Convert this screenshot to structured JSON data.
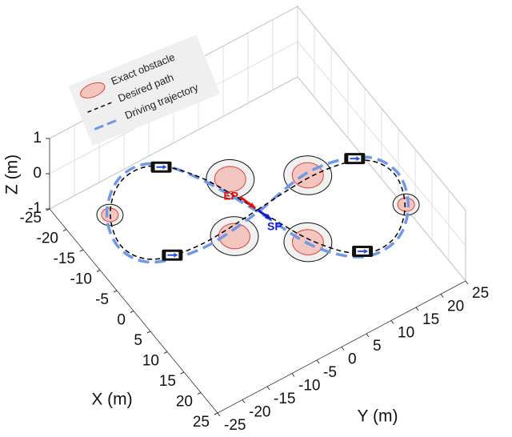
{
  "chart_data": {
    "type": "line3d",
    "xlabel": "X (m)",
    "ylabel": "Y (m)",
    "zlabel": "Z (m)",
    "xlim": [
      -25,
      25
    ],
    "ylim": [
      -25,
      25
    ],
    "zlim": [
      -1,
      1
    ],
    "xticks": [
      -25,
      -20,
      -15,
      -10,
      -5,
      0,
      5,
      10,
      15,
      20,
      25
    ],
    "yticks": [
      -25,
      -20,
      -15,
      -10,
      -5,
      0,
      5,
      10,
      15,
      20,
      25
    ],
    "zticks": [
      -1,
      0,
      1
    ],
    "grid": true,
    "series": [
      {
        "name": "Desired path",
        "color": "#000000",
        "linestyle": "dashed",
        "z": 0,
        "x": [
          0,
          -0.8,
          1.0,
          6.0,
          12.7,
          17.3,
          16.9,
          10.5,
          0,
          -10.5,
          -16.9,
          -17.3,
          -12.7,
          -6.0,
          -1.0,
          0.8,
          0
        ],
        "y": [
          0,
          11.9,
          20.3,
          23.3,
          21.1,
          15.7,
          9.5,
          4.2,
          0,
          -4.2,
          -9.5,
          -15.7,
          -21.1,
          -23.3,
          -20.3,
          -11.9,
          0
        ]
      },
      {
        "name": "Driving trajectory",
        "color": "#6f98e8",
        "linestyle": "dashed",
        "z": 0,
        "x": [
          0.4,
          -1.8,
          0.6,
          6.2,
          13.1,
          17.8,
          17.5,
          11.2,
          0.3,
          -11.0,
          -17.5,
          -17.9,
          -13.0,
          -6.1,
          -0.6,
          1.6,
          0.4
        ],
        "y": [
          0.1,
          11.8,
          20.9,
          23.9,
          21.5,
          15.9,
          9.2,
          3.6,
          -0.2,
          -4.8,
          -9.6,
          -15.8,
          -21.6,
          -23.8,
          -20.8,
          -11.6,
          0.1
        ]
      }
    ],
    "obstacles": {
      "name": "Exact obstacle",
      "color": "#e0413a",
      "fill": "#f4c6c0",
      "x": [
        -7.7,
        -1.3,
        2.4,
        10.1,
        -12.5,
        12.6
      ],
      "y": [
        -0.3,
        11.0,
        -6.3,
        3.3,
        -21.3,
        21.4
      ],
      "radius": [
        2.6,
        2.6,
        2.6,
        2.6,
        1.4,
        1.4
      ],
      "margin": [
        4.0,
        4.0,
        4.0,
        4.0,
        2.2,
        2.2
      ]
    },
    "vehicles": {
      "x": [
        -16.0,
        0.1,
        0.0,
        16.6
      ],
      "y": [
        -8.6,
        19.5,
        -17.2,
        9.9
      ]
    },
    "annotations": [
      {
        "text": "EP",
        "color": "#e3120b"
      },
      {
        "text": "SP",
        "color": "#1020d0"
      }
    ]
  }
}
